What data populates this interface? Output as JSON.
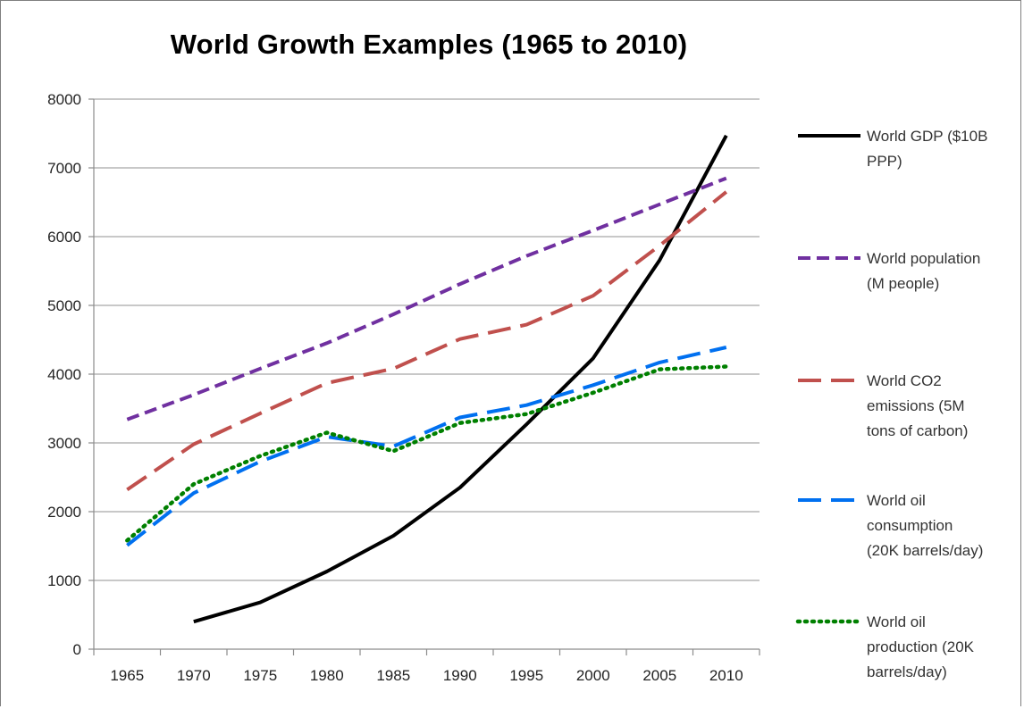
{
  "chart_data": {
    "type": "line",
    "title": "World Growth Examples (1965 to 2010)",
    "xlabel": "",
    "ylabel": "",
    "categories": [
      "1965",
      "1970",
      "1975",
      "1980",
      "1985",
      "1990",
      "1995",
      "2000",
      "2005",
      "2010"
    ],
    "ylim": [
      0,
      8000
    ],
    "yticks": [
      0,
      1000,
      2000,
      3000,
      4000,
      5000,
      6000,
      7000,
      8000
    ],
    "grid": true,
    "legend_position": "right",
    "series": [
      {
        "name": "World GDP ($10B PPP)",
        "legend_lines": [
          "World GDP ($10B",
          "PPP)"
        ],
        "color": "#000000",
        "style": "solid",
        "values": [
          null,
          400,
          680,
          1130,
          1650,
          2350,
          3270,
          4230,
          5660,
          7470
        ]
      },
      {
        "name": "World population (M people)",
        "legend_lines": [
          "World population",
          "(M people)"
        ],
        "color": "#7030a0",
        "style": "dash",
        "values": [
          3340,
          3700,
          4080,
          4450,
          4870,
          5310,
          5720,
          6090,
          6470,
          6850
        ]
      },
      {
        "name": "World CO2 emissions (5M tons of carbon)",
        "legend_lines": [
          "World CO2",
          "emissions (5M",
          "tons of carbon)"
        ],
        "color": "#c0504d",
        "style": "longdash",
        "values": [
          2320,
          2980,
          3430,
          3870,
          4080,
          4510,
          4720,
          5140,
          5870,
          6650
        ]
      },
      {
        "name": "World oil consumption (20K barrels/day)",
        "legend_lines": [
          "World oil",
          "consumption",
          "(20K barrels/day)"
        ],
        "color": "#0070f0",
        "style": "longdash",
        "values": [
          1510,
          2270,
          2730,
          3090,
          2950,
          3370,
          3550,
          3840,
          4170,
          4390
        ]
      },
      {
        "name": "World oil production (20K barrels/day)",
        "legend_lines": [
          "World oil",
          "production (20K",
          "barrels/day)"
        ],
        "color": "#008000",
        "style": "dot",
        "values": [
          1580,
          2400,
          2810,
          3150,
          2880,
          3290,
          3420,
          3730,
          4070,
          4110
        ]
      }
    ]
  }
}
